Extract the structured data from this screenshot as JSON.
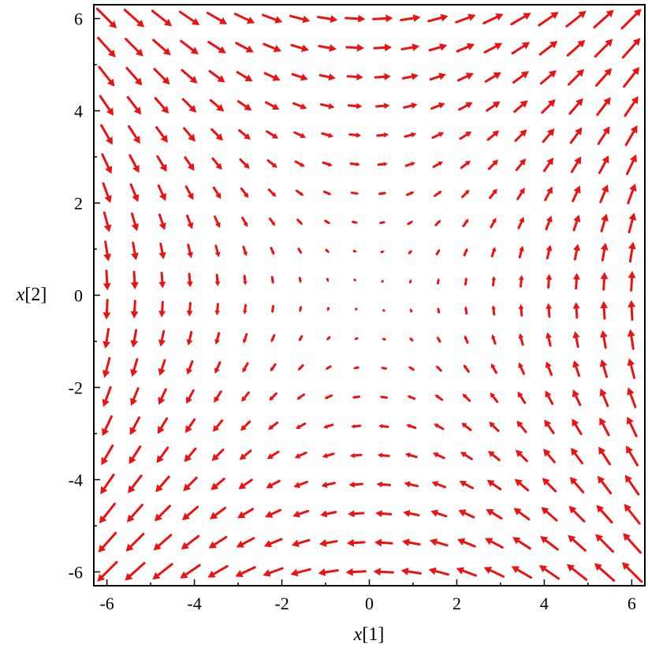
{
  "chart_data": {
    "type": "vector_field",
    "title": "",
    "xlabel_var": "x",
    "xlabel_index": "[1]",
    "ylabel_var": "x",
    "ylabel_index": "[2]",
    "xlim": [
      -6.3,
      6.3
    ],
    "ylim": [
      -6.3,
      6.3
    ],
    "xticks": [
      -6,
      -4,
      -2,
      0,
      2,
      4,
      6
    ],
    "yticks": [
      -6,
      -4,
      -2,
      0,
      2,
      4,
      6
    ],
    "xtick_labels": [
      "-6",
      "-4",
      "-2",
      "0",
      "2",
      "4",
      "6"
    ],
    "ytick_labels": [
      "-6",
      "-4",
      "-2",
      "0",
      "2",
      "4",
      "6"
    ],
    "grid_min": -6,
    "grid_max": 6,
    "grid_n": 20,
    "field": {
      "dx": "x[2]",
      "dy": "x[1]"
    },
    "arrow_color": "#ee1111",
    "grid": false
  }
}
